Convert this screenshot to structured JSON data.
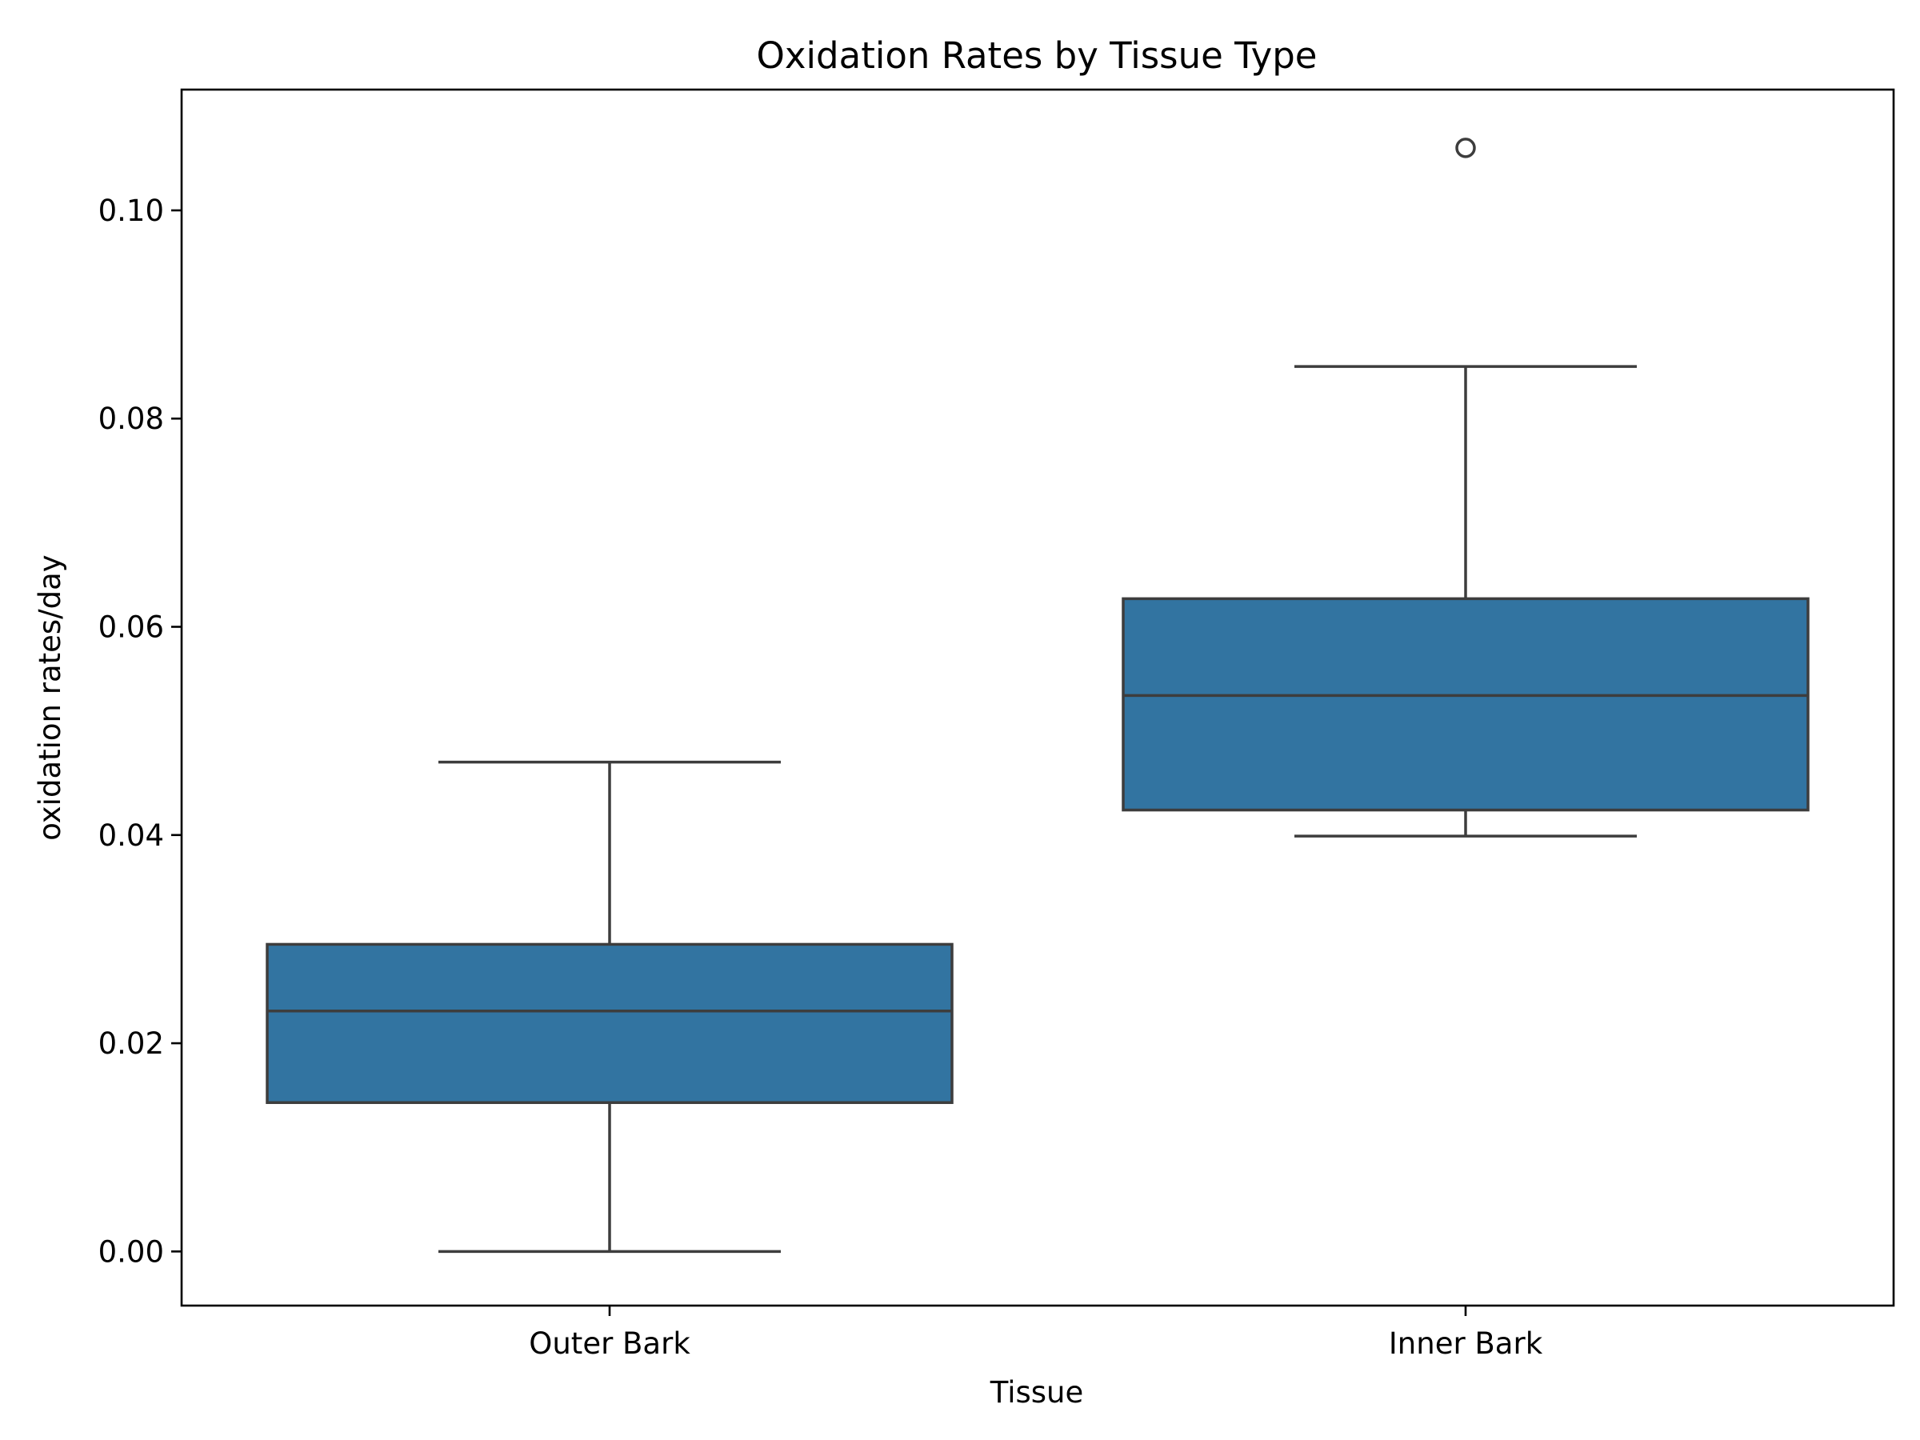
{
  "chart_data": {
    "type": "box",
    "title": "Oxidation Rates by Tissue Type",
    "xlabel": "Tissue",
    "ylabel": "oxidation rates/day",
    "categories": [
      "Outer Bark",
      "Inner Bark"
    ],
    "boxes": [
      {
        "category": "Outer Bark",
        "whisker_low": 0.0,
        "q1": 0.0143,
        "median": 0.0231,
        "q3": 0.0295,
        "whisker_high": 0.047,
        "outliers": []
      },
      {
        "category": "Inner Bark",
        "whisker_low": 0.0399,
        "q1": 0.0424,
        "median": 0.0534,
        "q3": 0.0627,
        "whisker_high": 0.085,
        "outliers": [
          0.106
        ]
      }
    ],
    "ylim": [
      -0.0052,
      0.1116
    ],
    "yticks": [
      "0.00",
      "0.02",
      "0.04",
      "0.06",
      "0.08",
      "0.10"
    ],
    "grid": false,
    "colors": {
      "box_fill": "#3274a1",
      "line": "#3d3d3d",
      "axes": "#000000"
    }
  }
}
